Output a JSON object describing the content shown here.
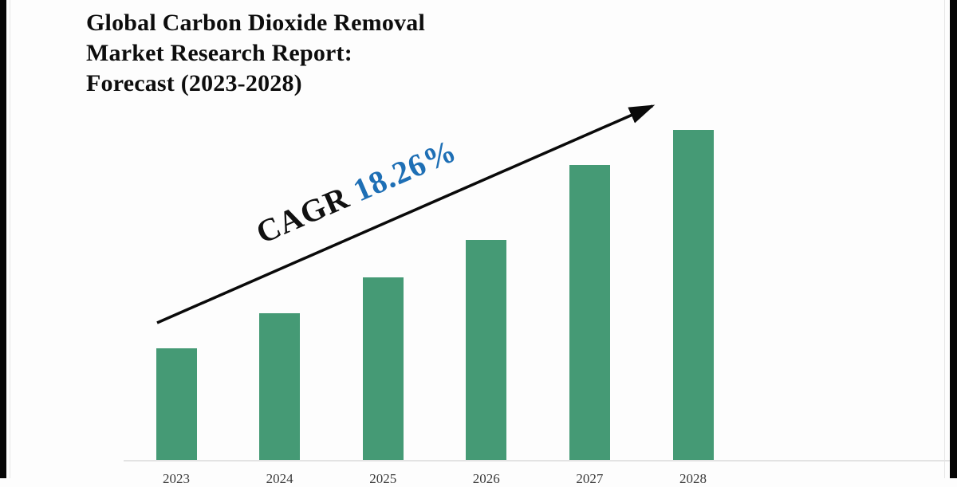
{
  "page": {
    "background_color": "#fdfdfd",
    "edge_strip_color": "#060606"
  },
  "title": {
    "lines": [
      "Global Carbon Dioxide Removal",
      "Market Research Report:",
      "Forecast (2023-2028)"
    ]
  },
  "annotation": {
    "prefix": "CAGR",
    "value": "18.26%",
    "prefix_color": "#101010",
    "value_color": "#1e6fb5"
  },
  "chart_data": {
    "type": "bar",
    "title": "Global Carbon Dioxide Removal Market Research Report: Forecast (2023-2028)",
    "categories": [
      "2023",
      "2024",
      "2025",
      "2026",
      "2027",
      "2028"
    ],
    "values_pct_of_max": [
      34.0,
      44.6,
      55.4,
      66.7,
      89.4,
      100.0
    ],
    "values_note": "no y-axis shown; bar sizes estimated as percent of tallest (2028) bar",
    "cagr_pct": 18.26,
    "cagr_label": "CAGR 18.26%",
    "bar_color": "#459a75",
    "axis_line_color": "#e3e3e3",
    "xlabel": "",
    "ylabel": "",
    "y_axis_shown": false,
    "gridlines": false,
    "legend": false,
    "trend_arrow": true
  }
}
